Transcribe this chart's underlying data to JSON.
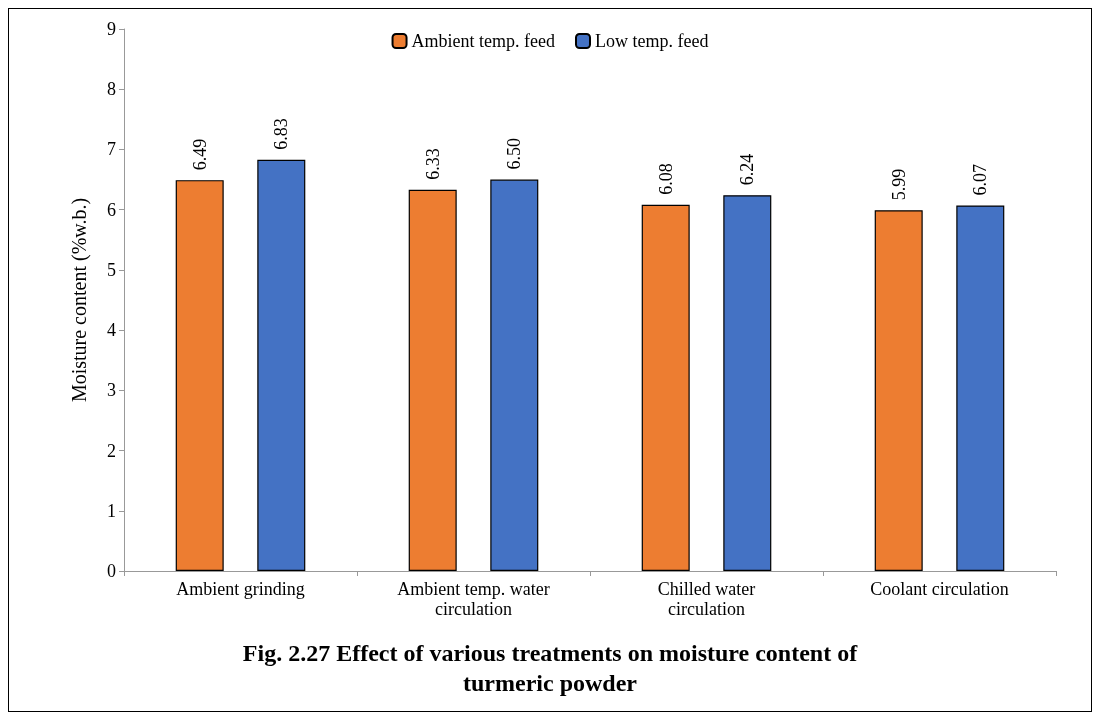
{
  "chart_data": {
    "type": "bar",
    "title": "Fig. 2.27 Effect of various treatments on moisture content of\nturmeric powder",
    "ylabel": "Moisture content (%w.b.)",
    "categories": [
      "Ambient grinding",
      "Ambient temp. water\ncirculation",
      "Chilled water\ncirculation",
      "Coolant circulation"
    ],
    "series": [
      {
        "name": "Ambient temp. feed",
        "color": "#ed7d31",
        "values": [
          6.49,
          6.33,
          6.08,
          5.99
        ]
      },
      {
        "name": "Low temp. feed",
        "color": "#4472c4",
        "values": [
          6.83,
          6.5,
          6.24,
          6.07
        ]
      }
    ],
    "value_labels": [
      [
        "6.49",
        "6.33",
        "6.08",
        "5.99"
      ],
      [
        "6.83",
        "6.50",
        "6.24",
        "6.07"
      ]
    ],
    "ylim": [
      0,
      9
    ],
    "yticks": [
      0,
      1,
      2,
      3,
      4,
      5,
      6,
      7,
      8,
      9
    ],
    "grid": false,
    "legend": "top"
  }
}
